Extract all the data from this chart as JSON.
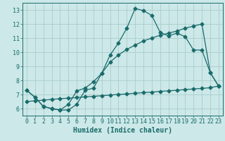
{
  "xlabel": "Humidex (Indice chaleur)",
  "background_color": "#cce8e8",
  "grid_color": "#aacccc",
  "line_color": "#1a6b6b",
  "xlim": [
    -0.5,
    23.5
  ],
  "ylim": [
    5.5,
    13.5
  ],
  "xticks": [
    0,
    1,
    2,
    3,
    4,
    5,
    6,
    7,
    8,
    9,
    10,
    11,
    12,
    13,
    14,
    15,
    16,
    17,
    18,
    19,
    20,
    21,
    22,
    23
  ],
  "yticks": [
    6,
    7,
    8,
    9,
    10,
    11,
    12,
    13
  ],
  "line1_x": [
    0,
    1,
    2,
    3,
    4,
    5,
    6,
    7,
    8,
    9,
    10,
    11,
    12,
    13,
    14,
    15,
    16,
    17,
    18,
    19,
    20,
    21,
    22,
    23
  ],
  "line1_y": [
    7.3,
    6.8,
    6.15,
    6.0,
    5.9,
    5.9,
    6.3,
    7.3,
    7.45,
    8.5,
    9.8,
    10.65,
    11.7,
    13.1,
    12.95,
    12.6,
    11.4,
    11.15,
    11.35,
    11.1,
    10.15,
    10.15,
    8.55,
    7.6
  ],
  "line2_x": [
    0,
    1,
    2,
    3,
    4,
    5,
    6,
    7,
    8,
    9,
    10,
    11,
    12,
    13,
    14,
    15,
    16,
    17,
    18,
    19,
    20,
    21,
    22,
    23
  ],
  "line2_y": [
    7.3,
    6.8,
    6.15,
    6.0,
    5.9,
    6.3,
    7.25,
    7.45,
    7.9,
    8.5,
    9.3,
    9.8,
    10.2,
    10.5,
    10.8,
    11.0,
    11.2,
    11.35,
    11.5,
    11.7,
    11.85,
    12.0,
    8.55,
    7.6
  ],
  "line3_x": [
    0,
    1,
    2,
    3,
    4,
    5,
    6,
    7,
    8,
    9,
    10,
    11,
    12,
    13,
    14,
    15,
    16,
    17,
    18,
    19,
    20,
    21,
    22,
    23
  ],
  "line3_y": [
    6.5,
    6.55,
    6.6,
    6.65,
    6.7,
    6.74,
    6.78,
    6.83,
    6.87,
    6.91,
    6.96,
    7.0,
    7.04,
    7.09,
    7.13,
    7.17,
    7.22,
    7.26,
    7.3,
    7.35,
    7.39,
    7.43,
    7.48,
    7.6
  ],
  "fontsize_label": 7,
  "fontsize_tick": 6
}
